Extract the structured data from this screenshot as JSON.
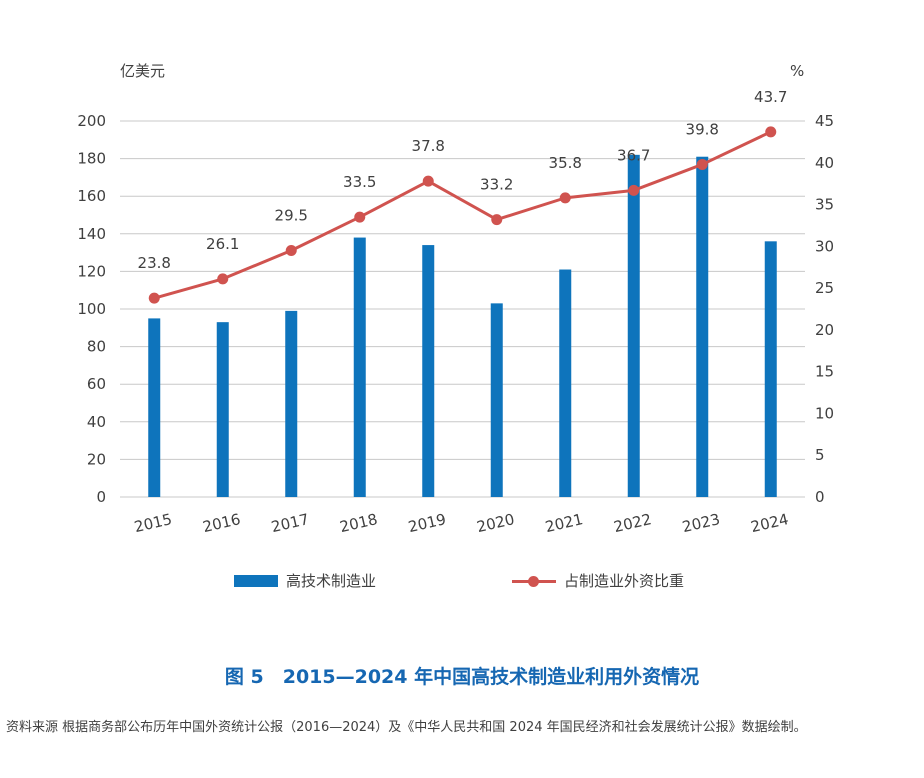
{
  "chart_data": {
    "type": "bar",
    "categories": [
      "2015",
      "2016",
      "2017",
      "2018",
      "2019",
      "2020",
      "2021",
      "2022",
      "2023",
      "2024"
    ],
    "series": [
      {
        "name": "高技术制造业",
        "type": "bar",
        "axis": "left",
        "color": "#0e74bc",
        "values": [
          95,
          93,
          99,
          138,
          134,
          103,
          121,
          182,
          181,
          136
        ]
      },
      {
        "name": "占制造业外资比重",
        "type": "line",
        "axis": "right",
        "color": "#d0534f",
        "values": [
          23.8,
          26.1,
          29.5,
          33.5,
          37.8,
          33.2,
          35.8,
          36.7,
          39.8,
          43.7
        ],
        "labels": [
          "23.8",
          "26.1",
          "29.5",
          "33.5",
          "37.8",
          "33.2",
          "35.8",
          "36.7",
          "39.8",
          "43.7"
        ]
      }
    ],
    "left_axis": {
      "unit": "亿美元",
      "ylim": [
        0,
        200
      ],
      "ticks": [
        "0",
        "20",
        "40",
        "60",
        "80",
        "100",
        "120",
        "140",
        "160",
        "180",
        "200"
      ]
    },
    "right_axis": {
      "unit": "%",
      "ylim": [
        0,
        45
      ],
      "ticks": [
        "0",
        "5",
        "10",
        "15",
        "20",
        "25",
        "30",
        "35",
        "40",
        "45"
      ]
    },
    "grid": true,
    "legend_position": "bottom"
  },
  "figure": {
    "title": "图 5　2015—2024 年中国高技术制造业利用外资情况",
    "source": "资料来源  根据商务部公布历年中国外资统计公报（2016—2024）及《中华人民共和国 2024 年国民经济和社会发展统计公报》数据绘制。"
  }
}
